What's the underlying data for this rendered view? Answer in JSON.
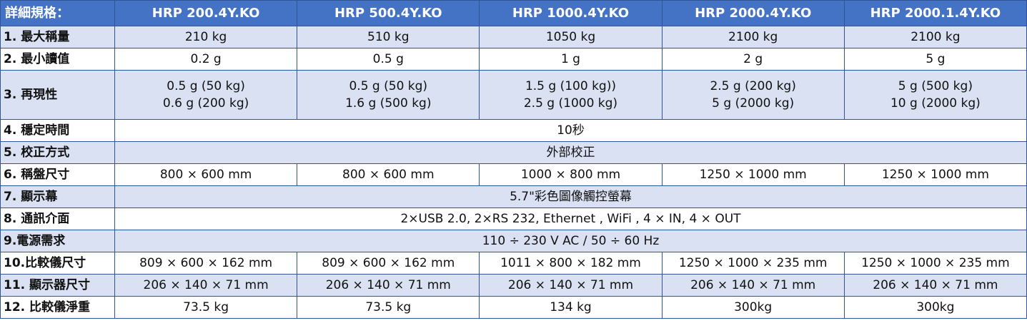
{
  "table": {
    "header": [
      "詳細規格：",
      "HRP 200.4Y.KO",
      "HRP 500.4Y.KO",
      "HRP 1000.4Y.KO",
      "HRP 2000.4Y.KO",
      "HRP 2000.1.4Y.KO"
    ],
    "rows": [
      {
        "label": "1. 最大稱量",
        "cells": [
          [
            "210 kg"
          ],
          [
            "510 kg"
          ],
          [
            "1050 kg"
          ],
          [
            "2100 kg"
          ],
          [
            "2100 kg"
          ]
        ]
      },
      {
        "label": "2. 最小讀值",
        "cells": [
          [
            "0.2 g"
          ],
          [
            "0.5 g"
          ],
          [
            "1 g"
          ],
          [
            "2 g"
          ],
          [
            "5 g"
          ]
        ]
      },
      {
        "label": "3. 再現性",
        "cells": [
          [
            "0.5 g (50 kg)",
            "0.6 g (200 kg)"
          ],
          [
            "0.5 g (50 kg)",
            "1.6 g (500 kg)"
          ],
          [
            "1.5 g (100 kg))",
            "2.5 g (1000 kg)"
          ],
          [
            "2.5 g (200 kg)",
            "5 g (2000 kg)"
          ],
          [
            "5 g (500 kg)",
            "10 g (2000 kg)"
          ]
        ]
      },
      {
        "label": "4. 穩定時間",
        "cells": [
          [
            "10秒"
          ]
        ]
      },
      {
        "label": "5. 校正方式",
        "cells": [
          [
            "外部校正"
          ]
        ]
      },
      {
        "label": "6. 稱盤尺寸",
        "cells": [
          [
            "800 × 600 mm"
          ],
          [
            "800 × 600 mm"
          ],
          [
            "1000 × 800 mm"
          ],
          [
            "1250 × 1000 mm"
          ],
          [
            "1250 × 1000 mm"
          ]
        ]
      },
      {
        "label": "7. 顯示幕",
        "cells": [
          [
            "5.7\"彩色圖像觸控螢幕"
          ]
        ]
      },
      {
        "label": "8. 通訊介面",
        "cells": [
          [
            "2×USB 2.0, 2×RS 232, Ethernet , WiFi , 4 × IN, 4 × OUT"
          ]
        ]
      },
      {
        "label": "9.電源需求",
        "cells": [
          [
            "110 ÷ 230 V AC / 50 ÷ 60 Hz"
          ]
        ]
      },
      {
        "label": "10.比較儀尺寸",
        "cells": [
          [
            "809 × 600 × 162 mm"
          ],
          [
            "809 × 600 × 162 mm"
          ],
          [
            "1011 × 800 × 182 mm"
          ],
          [
            "1250 × 1000 × 235 mm"
          ],
          [
            "1250 × 1000 × 235 mm"
          ]
        ]
      },
      {
        "label": "11. 顯示器尺寸",
        "cells": [
          [
            "206 × 140 × 71 mm"
          ],
          [
            "206 × 140 × 71 mm"
          ],
          [
            "206 × 140 × 71 mm"
          ],
          [
            "206 × 140 × 71 mm"
          ],
          [
            "206 × 140 × 71 mm"
          ]
        ]
      },
      {
        "label": "12. 比較儀淨重",
        "cells": [
          [
            "73.5 kg"
          ],
          [
            "73.5 kg"
          ],
          [
            "134 kg"
          ],
          [
            "300kg"
          ],
          [
            "300kg"
          ]
        ]
      }
    ]
  }
}
